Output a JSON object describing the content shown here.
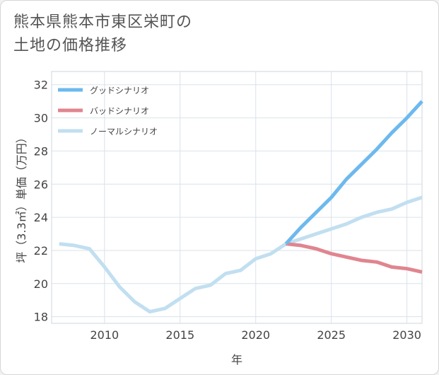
{
  "title_line1": "熊本県熊本市東区栄町の",
  "title_line2": "土地の価格推移",
  "chart_data": {
    "type": "line",
    "xlabel": "年",
    "ylabel": "坪（3.3㎡）単価（万円）",
    "xlim": [
      2006.5,
      2031
    ],
    "ylim": [
      17.6,
      32.8
    ],
    "xticks": [
      2010,
      2015,
      2020,
      2025,
      2030
    ],
    "yticks": [
      18,
      20,
      22,
      24,
      26,
      28,
      30,
      32
    ],
    "grid": true,
    "legend_position": "top-left",
    "series": [
      {
        "name": "グッドシナリオ",
        "color": "#6db9ee",
        "x": [
          2022,
          2023,
          2024,
          2025,
          2026,
          2027,
          2028,
          2029,
          2030,
          2031
        ],
        "y": [
          22.4,
          23.4,
          24.3,
          25.2,
          26.3,
          27.2,
          28.1,
          29.1,
          30.0,
          31.0
        ]
      },
      {
        "name": "バッドシナリオ",
        "color": "#e0858f",
        "x": [
          2022,
          2023,
          2024,
          2025,
          2026,
          2027,
          2028,
          2029,
          2030,
          2031
        ],
        "y": [
          22.4,
          22.3,
          22.1,
          21.8,
          21.6,
          21.4,
          21.3,
          21.0,
          20.9,
          20.7
        ]
      },
      {
        "name": "ノーマルシナリオ",
        "color": "#c1dff0",
        "x": [
          2007,
          2008,
          2009,
          2010,
          2011,
          2012,
          2013,
          2014,
          2015,
          2016,
          2017,
          2018,
          2019,
          2020,
          2021,
          2022,
          2023,
          2024,
          2025,
          2026,
          2027,
          2028,
          2029,
          2030,
          2031
        ],
        "y": [
          22.4,
          22.3,
          22.1,
          21.0,
          19.8,
          18.9,
          18.3,
          18.5,
          19.1,
          19.7,
          19.9,
          20.6,
          20.8,
          21.5,
          21.8,
          22.4,
          22.7,
          23.0,
          23.3,
          23.6,
          24.0,
          24.3,
          24.5,
          24.9,
          25.2
        ]
      }
    ]
  }
}
